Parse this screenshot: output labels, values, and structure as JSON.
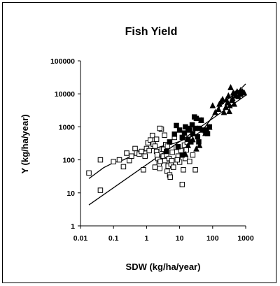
{
  "chart_data": {
    "type": "scatter",
    "title": "Fish  Yield",
    "xlabel": "SDW  (kg/ha/year)",
    "ylabel": "Y (kg/ha/year)",
    "xscale": "log",
    "yscale": "log",
    "xlim": [
      0.01,
      1000
    ],
    "ylim": [
      1,
      100000
    ],
    "x_ticks": [
      "0.01",
      "0.1",
      "1",
      "10",
      "100",
      "1000"
    ],
    "y_ticks": [
      "1",
      "10",
      "100",
      "1000",
      "10000",
      "100000"
    ],
    "legend": "none",
    "grid": false,
    "series": [
      {
        "marker": "open-square",
        "points": [
          [
            0.018,
            40
          ],
          [
            0.04,
            100
          ],
          [
            0.04,
            12
          ],
          [
            0.1,
            88
          ],
          [
            0.15,
            100
          ],
          [
            0.2,
            62
          ],
          [
            0.25,
            160
          ],
          [
            0.3,
            95
          ],
          [
            0.35,
            130
          ],
          [
            0.45,
            220
          ],
          [
            0.5,
            160
          ],
          [
            0.6,
            150
          ],
          [
            0.7,
            180
          ],
          [
            0.8,
            50
          ],
          [
            0.9,
            130
          ],
          [
            1.0,
            220
          ],
          [
            1.1,
            330
          ],
          [
            1.2,
            190
          ],
          [
            1.3,
            400
          ],
          [
            1.5,
            550
          ],
          [
            1.6,
            300
          ],
          [
            1.8,
            260
          ],
          [
            2.0,
            180
          ],
          [
            2.0,
            420
          ],
          [
            2.2,
            110
          ],
          [
            2.4,
            75
          ],
          [
            2.5,
            55
          ],
          [
            2.6,
            90
          ],
          [
            2.8,
            850
          ],
          [
            3.0,
            210
          ],
          [
            3.2,
            130
          ],
          [
            3.5,
            560
          ],
          [
            3.6,
            95
          ],
          [
            3.8,
            290
          ],
          [
            4.0,
            140
          ],
          [
            4.2,
            45
          ],
          [
            4.5,
            65
          ],
          [
            4.8,
            110
          ],
          [
            5.0,
            35
          ],
          [
            5.2,
            30
          ],
          [
            5.5,
            75
          ],
          [
            6.0,
            170
          ],
          [
            7.0,
            480
          ],
          [
            8.0,
            240
          ],
          [
            9.0,
            130
          ],
          [
            10.0,
            85
          ],
          [
            11.0,
            190
          ],
          [
            12.0,
            18
          ],
          [
            13.0,
            50
          ],
          [
            14.0,
            280
          ],
          [
            15.0,
            110
          ],
          [
            17.0,
            340
          ],
          [
            20.0,
            90
          ],
          [
            25.0,
            140
          ],
          [
            30.0,
            50
          ],
          [
            2.5,
            900
          ],
          [
            1.8,
            60
          ],
          [
            6.5,
            60
          ],
          [
            3.3,
            210
          ],
          [
            4.3,
            260
          ],
          [
            2.1,
            140
          ],
          [
            8.5,
            100
          ],
          [
            16.0,
            200
          ],
          [
            5.8,
            95
          ]
        ]
      },
      {
        "marker": "filled-square",
        "points": [
          [
            4.0,
            180
          ],
          [
            5.0,
            350
          ],
          [
            7.0,
            600
          ],
          [
            8.0,
            1100
          ],
          [
            9.0,
            250
          ],
          [
            10.0,
            800
          ],
          [
            12.0,
            480
          ],
          [
            14.0,
            650
          ],
          [
            15.0,
            1000
          ],
          [
            18.0,
            420
          ],
          [
            20.0,
            800
          ],
          [
            22.0,
            350
          ],
          [
            25.0,
            620
          ],
          [
            28.0,
            2000
          ],
          [
            30.0,
            900
          ],
          [
            32.0,
            1800
          ],
          [
            35.0,
            500
          ],
          [
            40.0,
            900
          ],
          [
            45.0,
            1600
          ],
          [
            50.0,
            800
          ],
          [
            60.0,
            750
          ],
          [
            70.0,
            620
          ],
          [
            80.0,
            1000
          ],
          [
            12.0,
            140
          ],
          [
            18.0,
            900
          ],
          [
            24.0,
            1150
          ],
          [
            65.0,
            800
          ],
          [
            38.0,
            350
          ]
        ]
      },
      {
        "marker": "filled-triangle",
        "points": [
          [
            15.0,
            150
          ],
          [
            18.0,
            280
          ],
          [
            25.0,
            420
          ],
          [
            32.0,
            220
          ],
          [
            40.0,
            280
          ],
          [
            45.0,
            1600
          ],
          [
            60.0,
            650
          ],
          [
            80.0,
            1000
          ],
          [
            100.0,
            4500
          ],
          [
            120.0,
            2800
          ],
          [
            150.0,
            3500
          ],
          [
            180.0,
            6000
          ],
          [
            200.0,
            7000
          ],
          [
            220.0,
            2800
          ],
          [
            250.0,
            4000
          ],
          [
            280.0,
            5500
          ],
          [
            300.0,
            9000
          ],
          [
            320.0,
            3000
          ],
          [
            350.0,
            16000
          ],
          [
            380.0,
            6500
          ],
          [
            400.0,
            7500
          ],
          [
            420.0,
            11000
          ],
          [
            450.0,
            5000
          ],
          [
            500.0,
            9000
          ],
          [
            550.0,
            12000
          ],
          [
            600.0,
            8500
          ],
          [
            700.0,
            10000
          ],
          [
            800.0,
            12000
          ],
          [
            900.0,
            11000
          ],
          [
            160.0,
            5000
          ],
          [
            260.0,
            6800
          ],
          [
            480.0,
            10500
          ],
          [
            330.0,
            4500
          ],
          [
            700.0,
            13000
          ]
        ]
      }
    ],
    "lines": [
      {
        "style": "regression",
        "points": [
          [
            0.018,
            4.3
          ],
          [
            1000,
            9000
          ]
        ]
      },
      {
        "style": "curve",
        "points": [
          [
            0.018,
            27
          ],
          [
            0.05,
            58
          ],
          [
            0.1,
            82
          ],
          [
            0.2,
            100
          ],
          [
            0.4,
            140
          ],
          [
            0.7,
            180
          ],
          [
            1.0,
            190
          ],
          [
            1.5,
            220
          ],
          [
            2.0,
            230
          ],
          [
            3.0,
            260
          ],
          [
            5.0,
            290
          ],
          [
            7.0,
            320
          ],
          [
            10.0,
            360
          ],
          [
            15.0,
            430
          ],
          [
            20.0,
            480
          ],
          [
            30.0,
            560
          ],
          [
            50.0,
            800
          ],
          [
            80.0,
            1500
          ],
          [
            120.0,
            2800
          ],
          [
            200.0,
            5000
          ],
          [
            400.0,
            9000
          ],
          [
            700.0,
            14000
          ],
          [
            1000.0,
            20000
          ]
        ]
      }
    ]
  }
}
